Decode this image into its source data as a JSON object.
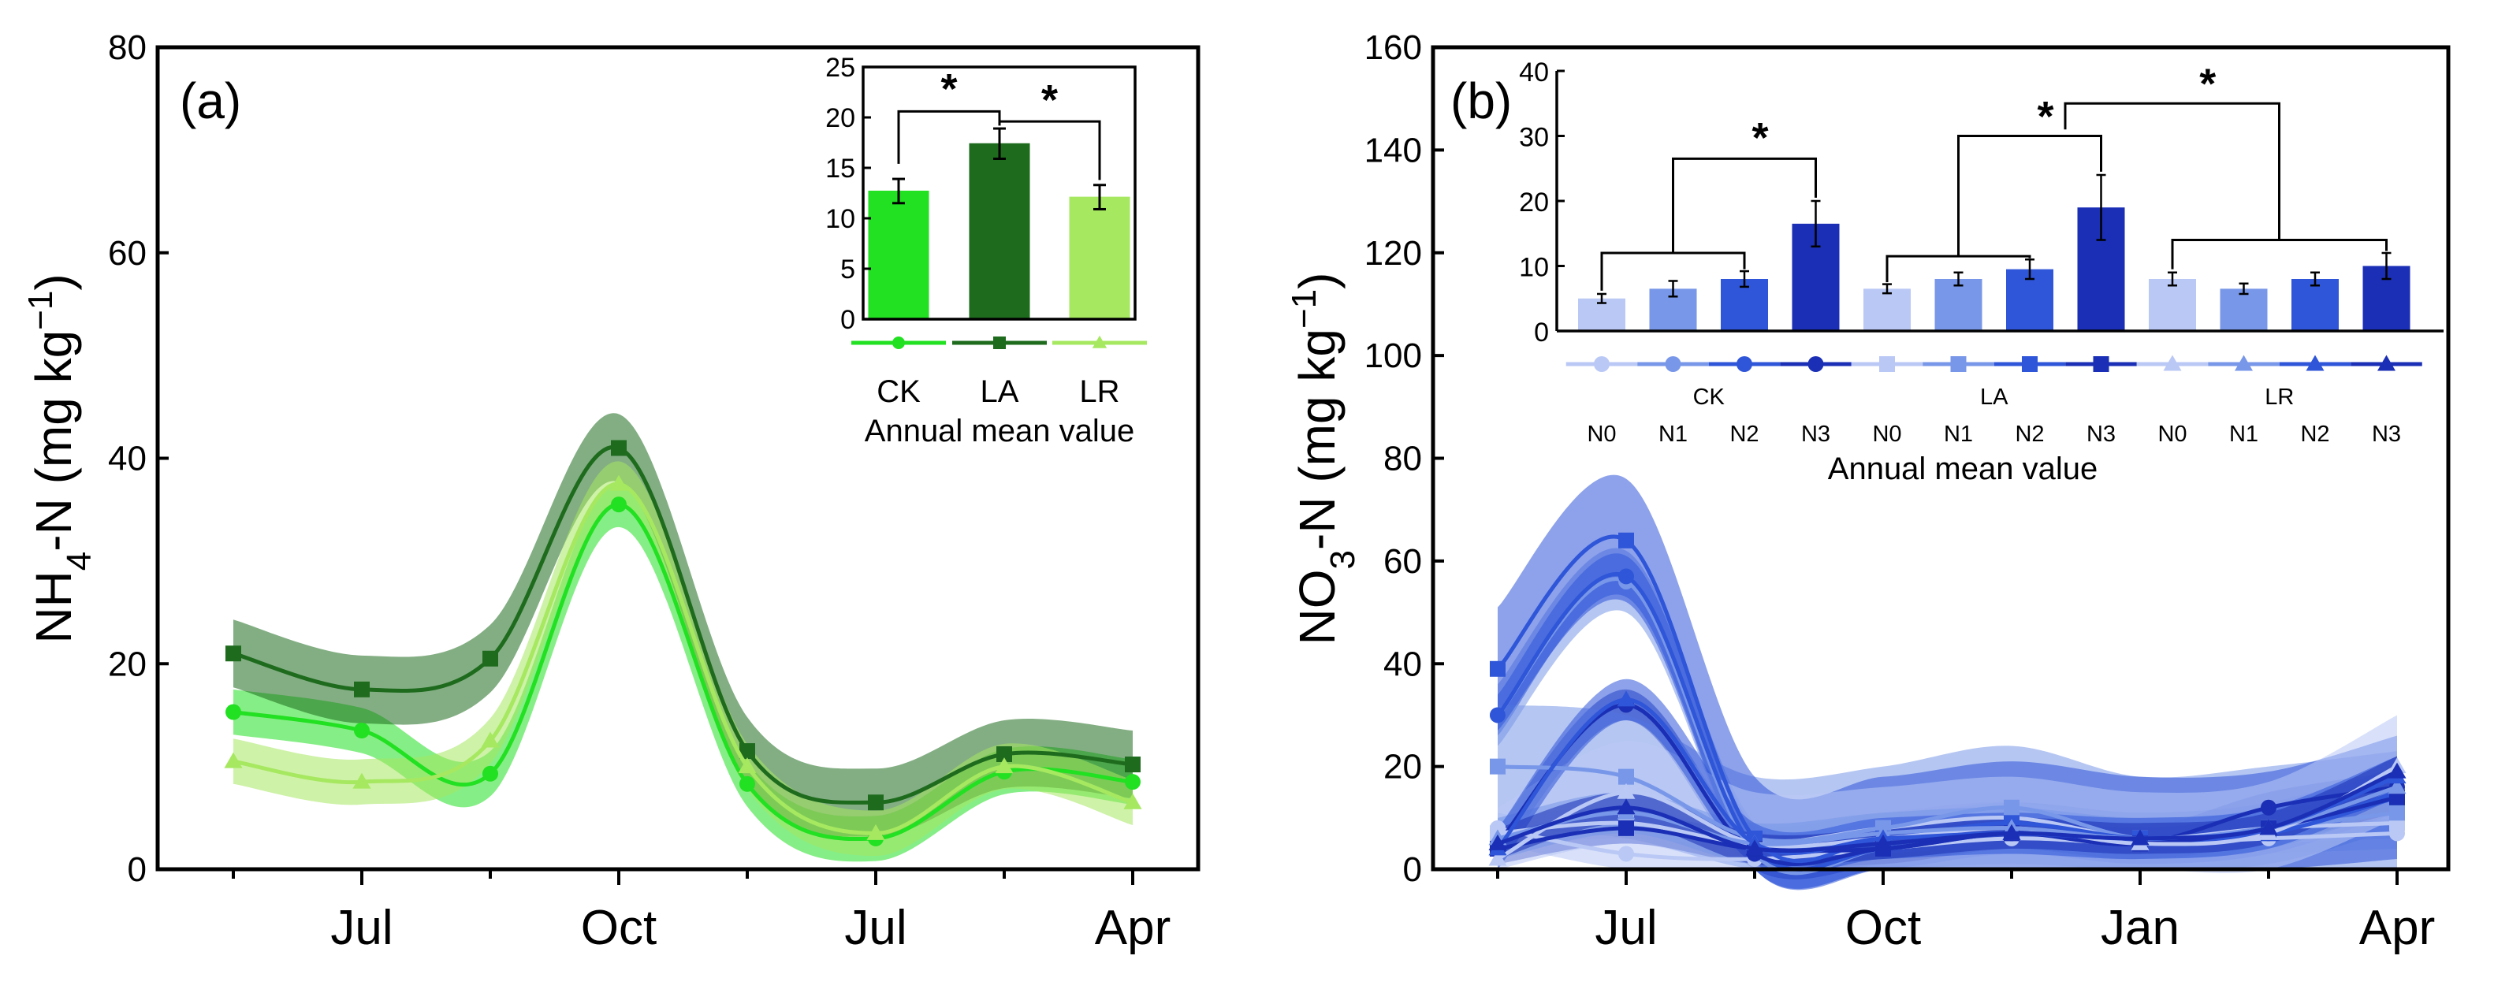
{
  "colors": {
    "ck": "#22e022",
    "la": "#1e6b1e",
    "lr": "#a6e860",
    "n0": "#bac8f5",
    "n1": "#7897e8",
    "n2": "#2f55d8",
    "n3": "#1a2fb5"
  },
  "chart_data": [
    {
      "panel": "(a)",
      "type": "line",
      "ylabel": "NH4-N (mg kg−1)",
      "ylabel_parts": {
        "main": "NH",
        "sub": "4",
        "rest": "-N (mg kg",
        "sup": "−1",
        "close": ")"
      },
      "ylim": [
        0,
        80
      ],
      "yticks": [
        "0",
        "20",
        "40",
        "60",
        "80"
      ],
      "xticks": [
        {
          "label": "Jul",
          "index": 1
        },
        {
          "label": "Oct",
          "index": 3
        },
        {
          "label": "Jul",
          "index": 5
        },
        {
          "label": "Apr",
          "index": 7
        }
      ],
      "x_count": 8,
      "series": [
        {
          "name": "CK",
          "color": "ck",
          "marker": "circle",
          "values": [
            15.3,
            13.5,
            9.3,
            35.5,
            8.3,
            3.0,
            9.5,
            8.5
          ],
          "band": 2.2
        },
        {
          "name": "LA",
          "color": "la",
          "marker": "square",
          "values": [
            21.0,
            17.5,
            20.5,
            41.0,
            11.5,
            6.5,
            11.2,
            10.2
          ],
          "band": 3.3
        },
        {
          "name": "LR",
          "color": "lr",
          "marker": "triangle",
          "values": [
            10.5,
            8.5,
            12.5,
            37.5,
            10.0,
            3.5,
            10.0,
            6.5
          ],
          "band": 2.2
        }
      ],
      "inset": {
        "type": "bar",
        "ylim": [
          0,
          25
        ],
        "yticks": [
          "0",
          "5",
          "10",
          "15",
          "20",
          "25"
        ],
        "categories": [
          "CK",
          "LA",
          "LR"
        ],
        "values": [
          12.7,
          17.4,
          12.1
        ],
        "errors": [
          1.2,
          1.5,
          1.2
        ],
        "xlabel": "Annual mean value",
        "significance": [
          "*",
          "*"
        ]
      }
    },
    {
      "panel": "(b)",
      "type": "line",
      "ylabel": "NO3-N (mg kg−1)",
      "ylabel_parts": {
        "main": "NO",
        "sub": "3",
        "rest": "-N (mg kg",
        "sup": "−1",
        "close": ")"
      },
      "ylim": [
        0,
        160
      ],
      "yticks": [
        "0",
        "20",
        "40",
        "60",
        "80",
        "100",
        "120",
        "140",
        "160"
      ],
      "xticks": [
        {
          "label": "Jul",
          "index": 1
        },
        {
          "label": "Oct",
          "index": 3
        },
        {
          "label": "Jan",
          "index": 5
        },
        {
          "label": "Apr",
          "index": 7
        }
      ],
      "x_count": 8,
      "series": [
        {
          "name": "CK-N0",
          "color": "n0",
          "marker": "circle",
          "values": [
            8,
            3,
            2,
            4,
            6,
            5,
            6,
            7
          ],
          "band": 3
        },
        {
          "name": "CK-N1",
          "color": "n1",
          "marker": "circle",
          "values": [
            30,
            56,
            3,
            4,
            7,
            5,
            7,
            14
          ],
          "band": 6
        },
        {
          "name": "CK-N2",
          "color": "n2",
          "marker": "circle",
          "values": [
            30,
            57,
            4,
            4,
            7,
            5,
            7,
            15
          ],
          "band": 4
        },
        {
          "name": "CK-N3",
          "color": "n3",
          "marker": "circle",
          "values": [
            5,
            32,
            3,
            4,
            7,
            5,
            12,
            16
          ],
          "band": 3
        },
        {
          "name": "LA-N0",
          "color": "n0",
          "marker": "square",
          "values": [
            7,
            9,
            5,
            8,
            10,
            6,
            8,
            9
          ],
          "band": 3
        },
        {
          "name": "LA-N1",
          "color": "n1",
          "marker": "square",
          "values": [
            20,
            18,
            6,
            8,
            12,
            6,
            8,
            11
          ],
          "band": 12
        },
        {
          "name": "LA-N2",
          "color": "n2",
          "marker": "square",
          "values": [
            39,
            64,
            6,
            6,
            9,
            6,
            7,
            14
          ],
          "band": 12
        },
        {
          "name": "LA-N3",
          "color": "n3",
          "marker": "square",
          "values": [
            4,
            8,
            4,
            4,
            7,
            5,
            8,
            14
          ],
          "band": 3
        },
        {
          "name": "LR-N0",
          "color": "n0",
          "marker": "triangle",
          "values": [
            2,
            15,
            5,
            6,
            8,
            5,
            7,
            20
          ],
          "band": 10
        },
        {
          "name": "LR-N1",
          "color": "n1",
          "marker": "triangle",
          "values": [
            6,
            11,
            5,
            7,
            8,
            6,
            8,
            16
          ],
          "band": 4
        },
        {
          "name": "LR-N2",
          "color": "n2",
          "marker": "triangle",
          "values": [
            4,
            33,
            5,
            6,
            7,
            6,
            8,
            18
          ],
          "band": 4
        },
        {
          "name": "LR-N3",
          "color": "n3",
          "marker": "triangle",
          "values": [
            5,
            12,
            4,
            5,
            7,
            6,
            8,
            19
          ],
          "band": 3
        }
      ],
      "inset": {
        "type": "bar",
        "ylim": [
          0,
          40
        ],
        "yticks": [
          "0",
          "10",
          "20",
          "30",
          "40"
        ],
        "groups": [
          "CK",
          "LA",
          "LR"
        ],
        "categories": [
          "N0",
          "N1",
          "N2",
          "N3",
          "N0",
          "N1",
          "N2",
          "N3",
          "N0",
          "N1",
          "N2",
          "N3"
        ],
        "bar_colors": [
          "n0",
          "n1",
          "n2",
          "n3",
          "n0",
          "n1",
          "n2",
          "n3",
          "n0",
          "n1",
          "n2",
          "n3"
        ],
        "markers": [
          "circle",
          "circle",
          "circle",
          "circle",
          "square",
          "square",
          "square",
          "square",
          "triangle",
          "triangle",
          "triangle",
          "triangle"
        ],
        "values": [
          5,
          6.5,
          8,
          16.5,
          6.5,
          8,
          9.5,
          19,
          8,
          6.5,
          8,
          10
        ],
        "errors": [
          0.7,
          1.2,
          1.2,
          3.5,
          0.7,
          1,
          1.5,
          5,
          1,
          0.8,
          1,
          2
        ],
        "xlabel": "Annual mean value",
        "significance": [
          "*",
          "*",
          "*"
        ]
      }
    }
  ]
}
